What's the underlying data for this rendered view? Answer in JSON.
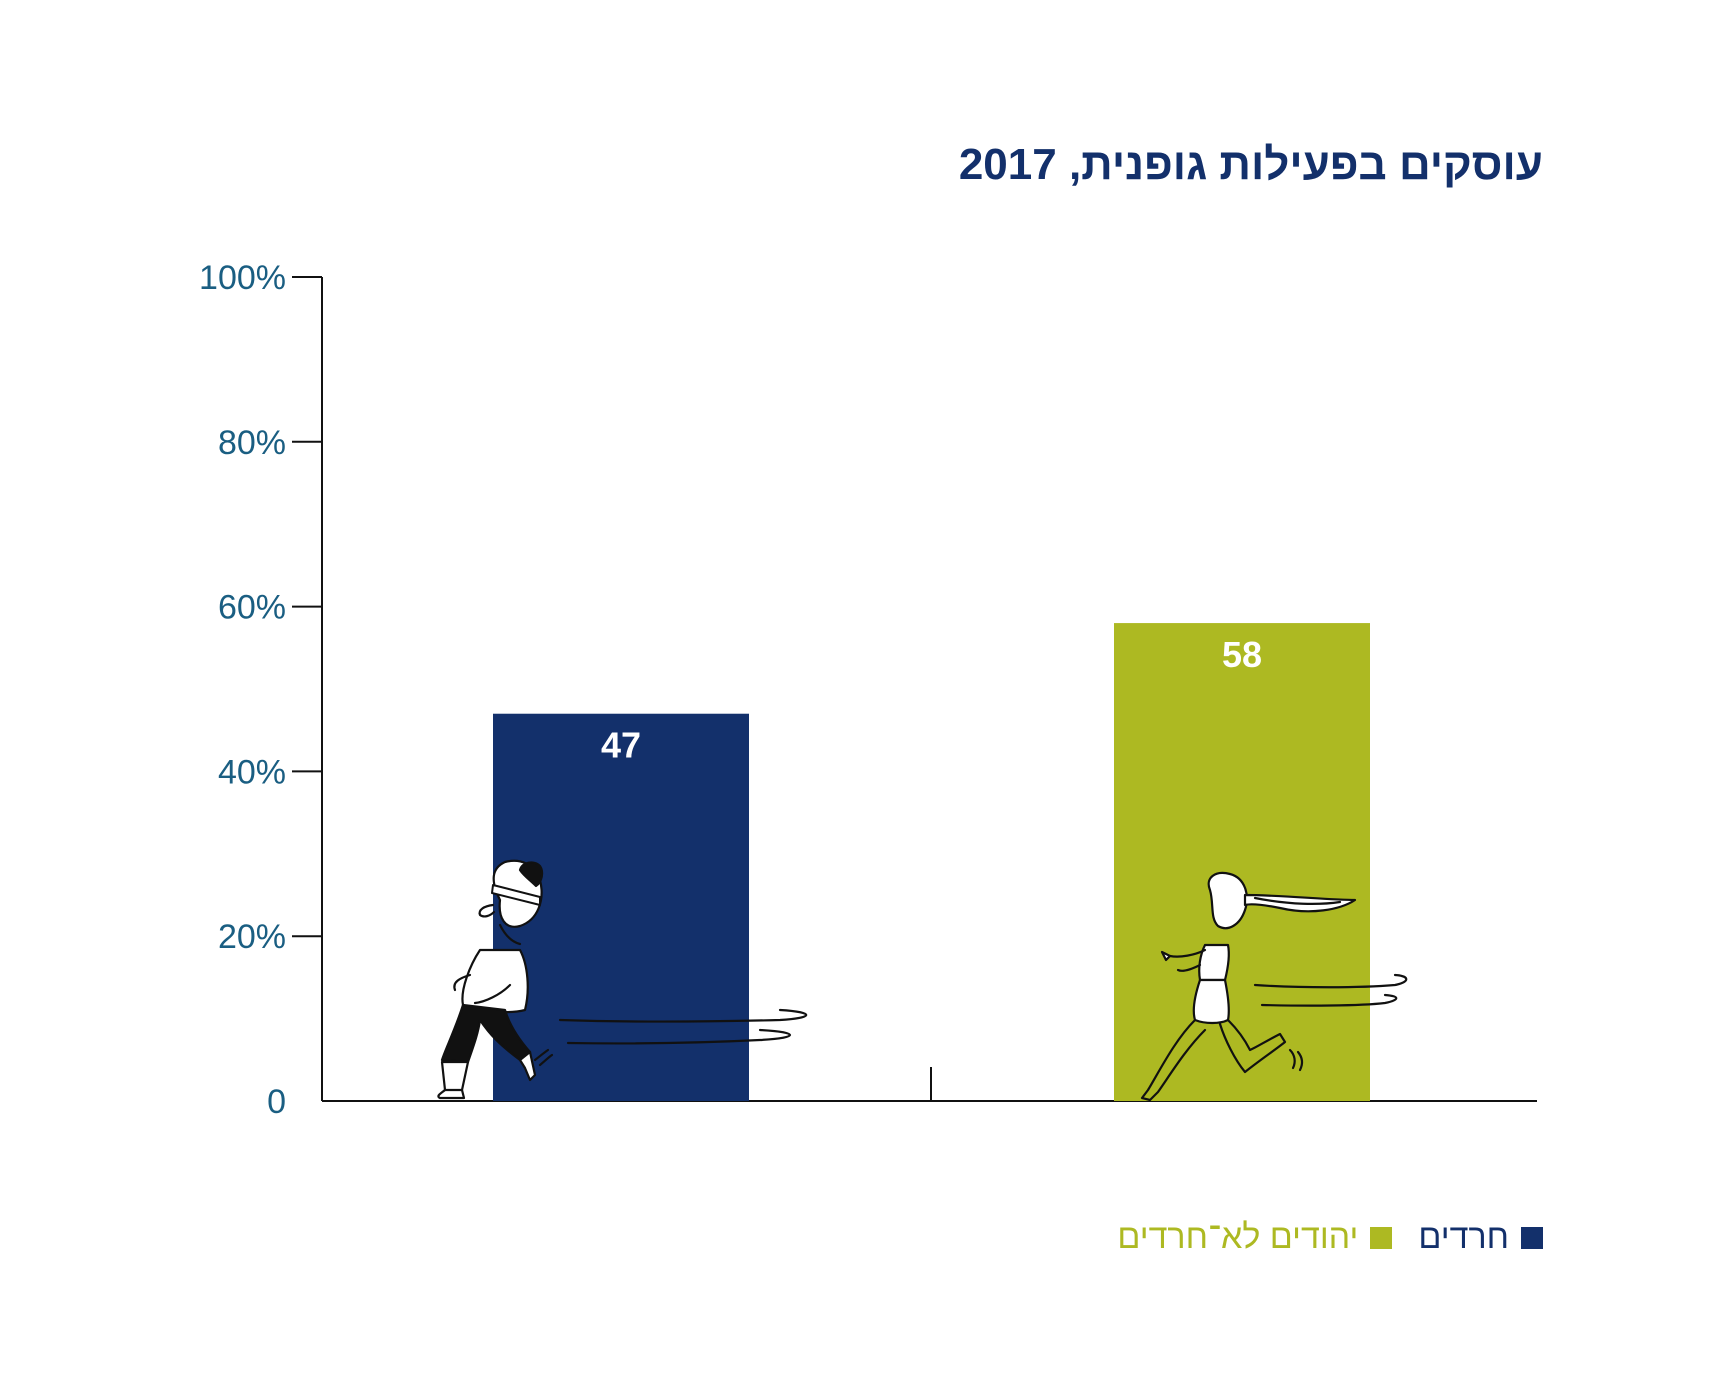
{
  "chart_data": {
    "type": "bar",
    "title": "עוסקים בפעילות גופנית, 2017",
    "categories": [
      "חרדים",
      "יהודים לא־חרדים"
    ],
    "values": [
      47,
      58
    ],
    "value_labels": [
      "47",
      "58"
    ],
    "colors": [
      "#13306b",
      "#adb922"
    ],
    "ylim": [
      0,
      100
    ],
    "yticks": [
      0,
      20,
      40,
      60,
      80,
      100
    ],
    "ytick_labels": [
      "0",
      "20%",
      "40%",
      "60%",
      "80%",
      "100%"
    ],
    "grid": false,
    "legend_position": "bottom-right",
    "legend": [
      {
        "label": "חרדים",
        "color": "#13306b"
      },
      {
        "label": "יהודים לא־חרדים",
        "color": "#adb922"
      }
    ]
  }
}
